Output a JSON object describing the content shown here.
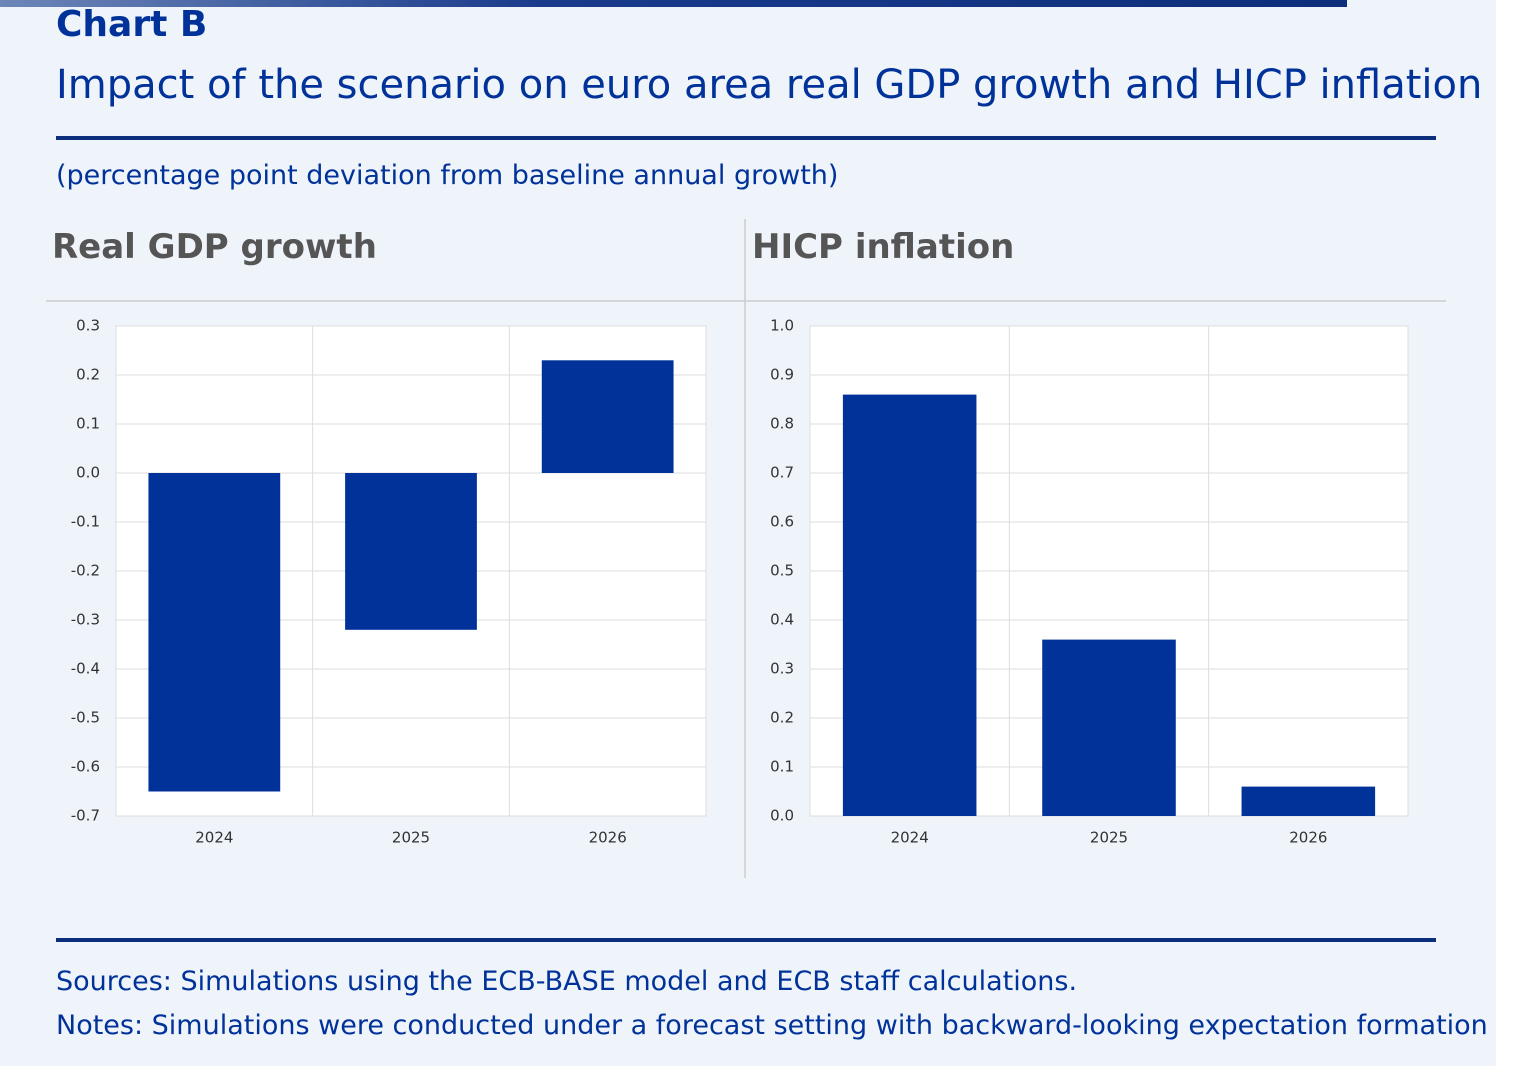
{
  "header": {
    "label": "Chart B",
    "title": "Impact of the scenario on euro area real GDP growth and HICP inflation",
    "subtitle": "(percentage point deviation from baseline annual growth)"
  },
  "chart_data": [
    {
      "type": "bar",
      "title": "Real GDP growth",
      "categories": [
        "2024",
        "2025",
        "2026"
      ],
      "values": [
        -0.65,
        -0.32,
        0.23
      ],
      "color": "#003299",
      "ylim": [
        -0.7,
        0.3
      ],
      "yticks": [
        -0.7,
        -0.6,
        -0.5,
        -0.4,
        -0.3,
        -0.2,
        -0.1,
        {
          "value": 0,
          "label": "0.0"
        },
        0.1,
        0.2,
        0.3
      ],
      "grid": true
    },
    {
      "type": "bar",
      "title": "HICP inflation",
      "categories": [
        "2024",
        "2025",
        "2026"
      ],
      "values": [
        0.86,
        0.36,
        0.06
      ],
      "color": "#003299",
      "ylim": [
        0,
        1
      ],
      "yticks": [
        {
          "value": 0,
          "label": "0.0"
        },
        0.1,
        0.2,
        0.3,
        0.4,
        0.5,
        0.6,
        0.7,
        0.8,
        0.9,
        {
          "value": 1,
          "label": "1.0"
        }
      ],
      "grid": true
    }
  ],
  "footer": {
    "sources": "Sources: Simulations using the ECB-BASE model and ECB staff calculations.",
    "notes": "Notes: Simulations were conducted under a forecast setting with backward-looking expectation formation"
  }
}
